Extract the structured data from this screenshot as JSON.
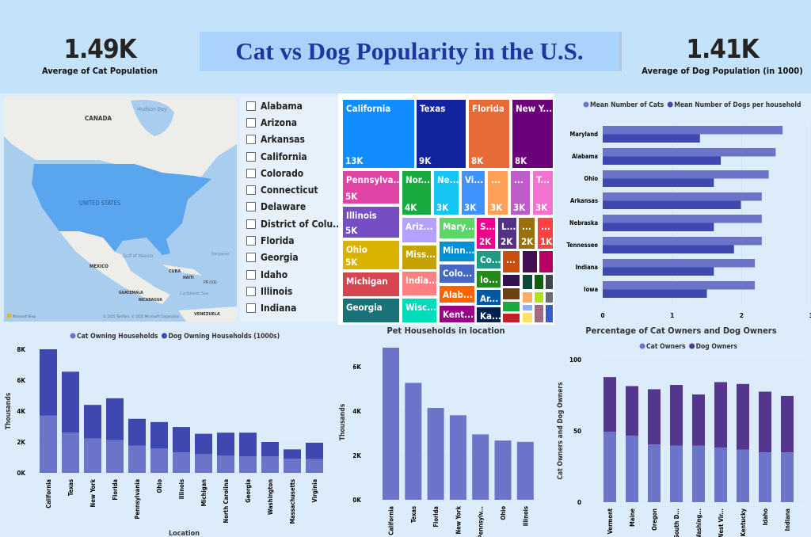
{
  "header": {
    "title": "Cat vs Dog Popularity in the U.S.",
    "kpi_cat": {
      "value": "1.49K",
      "label": "Average of Cat Population"
    },
    "kpi_dog": {
      "value": "1.41K",
      "label": "Average of Dog Population (in 1000)"
    }
  },
  "map": {
    "labels": {
      "canada": "CANADA",
      "hudson": "Hudson Bay",
      "us": "UNITED STATES",
      "mexico": "MEXICO",
      "gulf": "Gulf of Mexico",
      "cuba": "CUBA",
      "haiti": "HAITI",
      "pr": "PR (US)",
      "guatemala": "GUATEMALA",
      "nicaragua": "NICARAGUA",
      "caribbean": "Caribbean Sea",
      "venezuela": "VENEZUELA",
      "sargasso": "Sargasso",
      "bing": "Microsoft Bing",
      "copyright": "© 2025 TomTom, © 2025 Microsoft Corporation"
    },
    "highlight_color": "#5aa6ee"
  },
  "slicer": {
    "items": [
      "Alabama",
      "Arizona",
      "Arkansas",
      "California",
      "Colorado",
      "Connecticut",
      "Delaware",
      "District of Colu...",
      "Florida",
      "Georgia",
      "Idaho",
      "Illinois",
      "Indiana"
    ]
  },
  "treemap": {
    "tiles": [
      {
        "label": "California",
        "value": "13K",
        "color": "#118dff"
      },
      {
        "label": "Texas",
        "value": "9K",
        "color": "#12239e"
      },
      {
        "label": "Florida",
        "value": "8K",
        "color": "#e66c37"
      },
      {
        "label": "New Y...",
        "value": "8K",
        "color": "#6b007b"
      },
      {
        "label": "Pennsylva...",
        "value": "5K",
        "color": "#e044a7"
      },
      {
        "label": "Illinois",
        "value": "5K",
        "color": "#744ec2"
      },
      {
        "label": "Ohio",
        "value": "5K",
        "color": "#d9b300"
      },
      {
        "label": "Michigan",
        "value": "",
        "color": "#d64550"
      },
      {
        "label": "Georgia",
        "value": "",
        "color": "#197278"
      },
      {
        "label": "Nor...",
        "value": "4K",
        "color": "#1aab40"
      },
      {
        "label": "Ne...",
        "value": "3K",
        "color": "#15c6f4"
      },
      {
        "label": "Vi...",
        "value": "3K",
        "color": "#4092ff"
      },
      {
        "label": "...",
        "value": "3K",
        "color": "#ffa058"
      },
      {
        "label": "...",
        "value": "3K",
        "color": "#be5dc9"
      },
      {
        "label": "T...",
        "value": "3K",
        "color": "#f472d0"
      },
      {
        "label": "Ariz...",
        "value": "",
        "color": "#b5a1ff"
      },
      {
        "label": "Miss...",
        "value": "",
        "color": "#c4a200"
      },
      {
        "label": "India...",
        "value": "",
        "color": "#ff8080"
      },
      {
        "label": "Wisc...",
        "value": "",
        "color": "#00dbbc"
      },
      {
        "label": "Mary...",
        "value": "",
        "color": "#5bd667"
      },
      {
        "label": "Minn...",
        "value": "",
        "color": "#0091d5"
      },
      {
        "label": "Colo...",
        "value": "",
        "color": "#4668c5"
      },
      {
        "label": "Alab...",
        "value": "",
        "color": "#ff6300"
      },
      {
        "label": "Kent...",
        "value": "",
        "color": "#99008a"
      },
      {
        "label": "S...",
        "value": "2K",
        "color": "#ec008c"
      },
      {
        "label": "L...",
        "value": "2K",
        "color": "#533285"
      },
      {
        "label": "...",
        "value": "2K",
        "color": "#99700a"
      },
      {
        "label": "...",
        "value": "1K",
        "color": "#ff4141"
      },
      {
        "label": "Co...",
        "value": "",
        "color": "#1f9a85"
      },
      {
        "label": "Io...",
        "value": "",
        "color": "#25891c"
      },
      {
        "label": "Ar...",
        "value": "",
        "color": "#0057a2"
      },
      {
        "label": "Ka...",
        "value": "",
        "color": "#002050"
      },
      {
        "label": "...",
        "value": "",
        "color": "#c94f0f"
      },
      {
        "label": "",
        "value": "",
        "color": "#450f54"
      },
      {
        "label": "",
        "value": "",
        "color": "#b60064"
      },
      {
        "label": "",
        "value": "",
        "color": "#34124f"
      },
      {
        "label": "",
        "value": "",
        "color": "#6a4214"
      },
      {
        "label": "",
        "value": "",
        "color": "#1aab40"
      },
      {
        "label": "",
        "value": "",
        "color": "#c4202a"
      },
      {
        "label": "",
        "value": "",
        "color": "#0e4939"
      },
      {
        "label": "",
        "value": "",
        "color": "#12600c"
      },
      {
        "label": "",
        "value": "",
        "color": "#3d4450"
      },
      {
        "label": "",
        "value": "",
        "color": "#ffaa66"
      },
      {
        "label": "",
        "value": "",
        "color": "#b4e21a"
      },
      {
        "label": "",
        "value": "",
        "color": "#6b6f75"
      },
      {
        "label": "",
        "value": "",
        "color": "#8ab0ff"
      },
      {
        "label": "",
        "value": "",
        "color": "#ffe066"
      },
      {
        "label": "",
        "value": "",
        "color": "#a66a80"
      },
      {
        "label": "",
        "value": "",
        "color": "#3a5cc7"
      }
    ]
  },
  "chart_data": [
    {
      "id": "mean-pets",
      "type": "bar",
      "orientation": "horizontal",
      "categories": [
        "Maryland",
        "Alabama",
        "Ohio",
        "Arkansas",
        "Nebraska",
        "Tennessee",
        "Indiana",
        "Iowa"
      ],
      "series": [
        {
          "name": "Mean Number of Cats",
          "color": "#6b74c8",
          "values": [
            2.59,
            2.49,
            2.39,
            2.29,
            2.29,
            2.29,
            2.19,
            2.19
          ]
        },
        {
          "name": "Mean Number of Dogs per household",
          "color": "#3f48b0",
          "values": [
            1.4,
            1.7,
            1.6,
            1.99,
            1.6,
            1.89,
            1.6,
            1.5
          ]
        }
      ],
      "xlim": [
        0,
        3
      ],
      "xticks": [
        "0",
        "1",
        "2",
        "3"
      ],
      "legend": "top"
    },
    {
      "id": "owning-households",
      "type": "bar",
      "stacked": true,
      "xlabel": "Location",
      "ylabel": "Thousands",
      "categories": [
        "California",
        "Texas",
        "New York",
        "Florida",
        "Pennsylvania",
        "Ohio",
        "Illinois",
        "Michigan",
        "North Carolina",
        "Georgia",
        "Washington",
        "Massachusetts",
        "Virginia"
      ],
      "series": [
        {
          "name": "Cat Owning Households",
          "color": "#6b74c8",
          "values": [
            3.7,
            2.6,
            2.22,
            2.13,
            1.77,
            1.57,
            1.33,
            1.21,
            1.11,
            1.06,
            1.06,
            0.92,
            0.89
          ]
        },
        {
          "name": "Dog Owning Households (1000s)",
          "color": "#3f48b0",
          "values": [
            4.3,
            3.95,
            2.18,
            2.7,
            1.73,
            1.72,
            1.64,
            1.32,
            1.49,
            1.54,
            0.94,
            0.6,
            1.06
          ]
        }
      ],
      "ylim": [
        0,
        8
      ],
      "yticks": [
        "0K",
        "2K",
        "4K",
        "6K",
        "8K"
      ],
      "legend": "top"
    },
    {
      "id": "pet-households",
      "type": "bar",
      "title": "Pet Households in location",
      "ylabel": "Thousands",
      "categories": [
        "California",
        "Texas",
        "Florida",
        "New York",
        "Pennsylv...",
        "Ohio",
        "Illinois"
      ],
      "series": [
        {
          "color": "#6b74c8",
          "values": [
            6.86,
            5.27,
            4.14,
            3.81,
            2.95,
            2.67,
            2.61
          ]
        }
      ],
      "ylim": [
        0,
        7
      ],
      "yticks": [
        "0K",
        "2K",
        "4K",
        "6K"
      ]
    },
    {
      "id": "owner-percentage",
      "type": "bar",
      "stacked": true,
      "title": "Percentage of Cat Owners and Dog Owners",
      "ylabel": "Cat Owners and Dog Owners",
      "categories": [
        "Vermont",
        "Maine",
        "Oregon",
        "South D...",
        "Washing...",
        "West Vir...",
        "Kentucky",
        "Idaho",
        "Indiana"
      ],
      "series": [
        {
          "name": "Cat Owners",
          "color": "#6b74c8",
          "values": [
            49.4,
            46.7,
            40.5,
            39.6,
            39.6,
            38.3,
            36.8,
            34.9,
            34.9
          ]
        },
        {
          "name": "Dog Owners",
          "color": "#55368f",
          "values": [
            38.3,
            34.7,
            38.7,
            42.6,
            35.9,
            45.9,
            46.1,
            42.6,
            39.6
          ]
        }
      ],
      "ylim": [
        0,
        100
      ],
      "yticks": [
        "0",
        "50",
        "100"
      ],
      "legend": "top"
    }
  ]
}
